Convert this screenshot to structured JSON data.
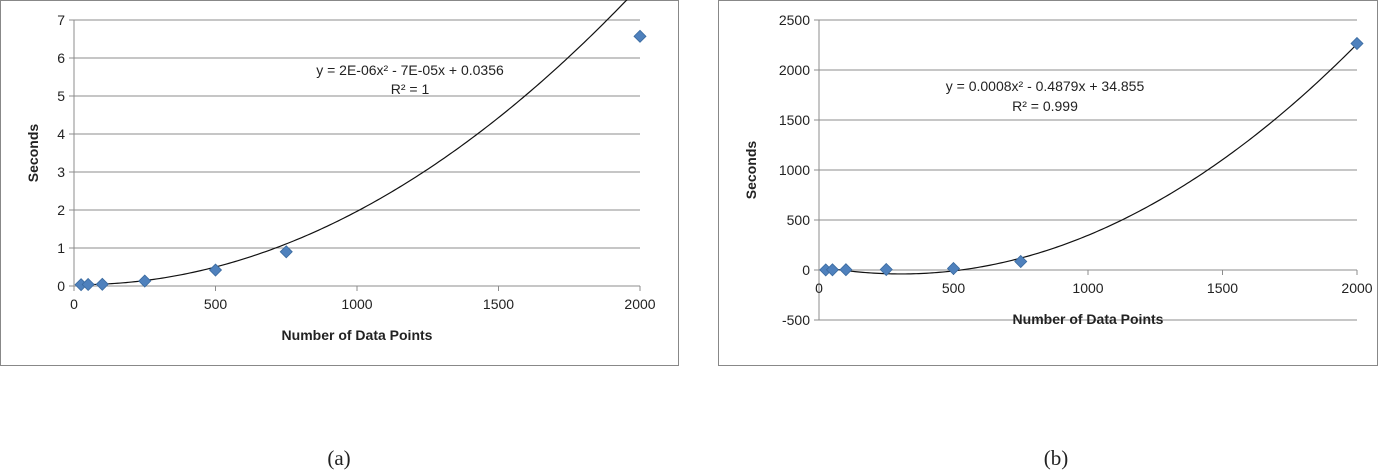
{
  "chart_data": [
    {
      "type": "scatter",
      "xlabel": "Number of Data Points",
      "ylabel": "Seconds",
      "xlim": [
        0,
        2000
      ],
      "ylim": [
        0,
        7
      ],
      "xticks": [
        "0",
        "500",
        "1000",
        "1500",
        "2000"
      ],
      "yticks": [
        "0",
        "1",
        "2",
        "3",
        "4",
        "5",
        "6",
        "7"
      ],
      "grid": "horizontal",
      "points": {
        "x": [
          25,
          50,
          100,
          250,
          500,
          750,
          2000
        ],
        "y": [
          0.035,
          0.04,
          0.045,
          0.13,
          0.42,
          0.9,
          6.57
        ]
      },
      "trendline": {
        "type": "polynomial",
        "coefficients": [
          2e-06,
          -7e-05,
          0.0356
        ],
        "equation": "y = 2E-06x² - 7E-05x + 0.0356",
        "r2": "R² = 1"
      },
      "marker_color": "#4f81bd",
      "caption": "(a)"
    },
    {
      "type": "scatter",
      "xlabel": "Number of Data Points",
      "ylabel": "Seconds",
      "xlim": [
        0,
        2000
      ],
      "ylim": [
        -500,
        2500
      ],
      "xticks": [
        "0",
        "500",
        "1000",
        "1500",
        "2000"
      ],
      "yticks": [
        "-500",
        "0",
        "500",
        "1000",
        "1500",
        "2000",
        "2500"
      ],
      "grid": "horizontal",
      "points": {
        "x": [
          25,
          50,
          100,
          250,
          500,
          750,
          2000
        ],
        "y": [
          1,
          2,
          3,
          5,
          15,
          85,
          2265
        ]
      },
      "trendline": {
        "type": "polynomial",
        "coefficients": [
          0.0008,
          -0.4879,
          34.855
        ],
        "equation": "y = 0.0008x² - 0.4879x + 34.855",
        "r2": "R² = 0.999"
      },
      "marker_color": "#4f81bd",
      "caption": "(b)"
    }
  ]
}
